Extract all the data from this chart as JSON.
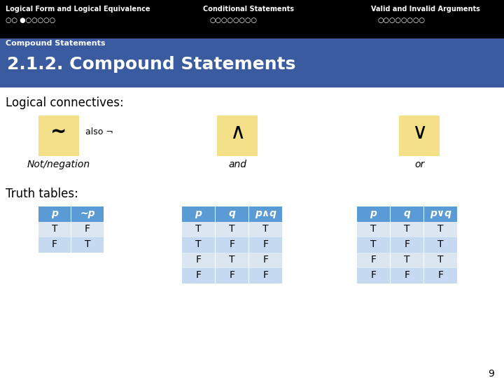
{
  "title_bar_color": "#000000",
  "section_bar_color": "#3a5ba0",
  "main_bg": "#ffffff",
  "yellow_box_color": "#f5e08a",
  "blue_header_color": "#5b9bd5",
  "blue_row1_color": "#dce6f1",
  "blue_row2_color": "#c5d9f0",
  "section_label": "Compound Statements",
  "main_title": "2.1.2. Compound Statements",
  "logical_connectives": "Logical connectives:",
  "truth_tables": "Truth tables:",
  "page_number": "9",
  "nav_left_title": "Logical Form and Logical Equivalence",
  "nav_mid_title": "Conditional Statements",
  "nav_right_title": "Valid and Invalid Arguments",
  "nav_left_dots": "○○ ●○○○○○",
  "nav_mid_dots": "○○○○○○○○",
  "nav_right_dots": "○○○○○○○○"
}
